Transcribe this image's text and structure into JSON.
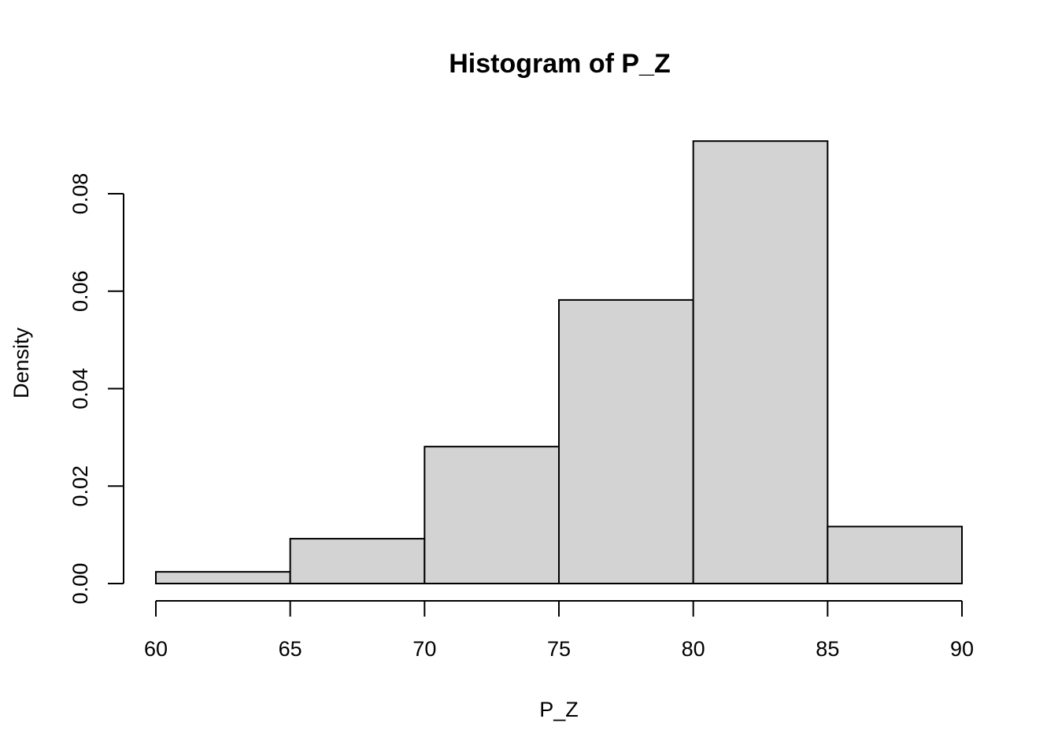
{
  "chart_data": {
    "type": "bar",
    "title": "Histogram of P_Z",
    "xlabel": "P_Z",
    "ylabel": "Density",
    "bins": [
      {
        "from": 60,
        "to": 65,
        "density": 0.0024
      },
      {
        "from": 65,
        "to": 70,
        "density": 0.0092
      },
      {
        "from": 70,
        "to": 75,
        "density": 0.0281
      },
      {
        "from": 75,
        "to": 80,
        "density": 0.0582
      },
      {
        "from": 80,
        "to": 85,
        "density": 0.0908
      },
      {
        "from": 85,
        "to": 90,
        "density": 0.0117
      }
    ],
    "x_ticks": [
      60,
      65,
      70,
      75,
      80,
      85,
      90
    ],
    "y_ticks": [
      "0.00",
      "0.02",
      "0.04",
      "0.06",
      "0.08"
    ],
    "xlim": [
      60,
      90
    ],
    "ylim": [
      0,
      0.08
    ],
    "grid": false,
    "legend": "none",
    "bar_fill": "#d3d3d3",
    "bar_stroke": "#000000"
  }
}
